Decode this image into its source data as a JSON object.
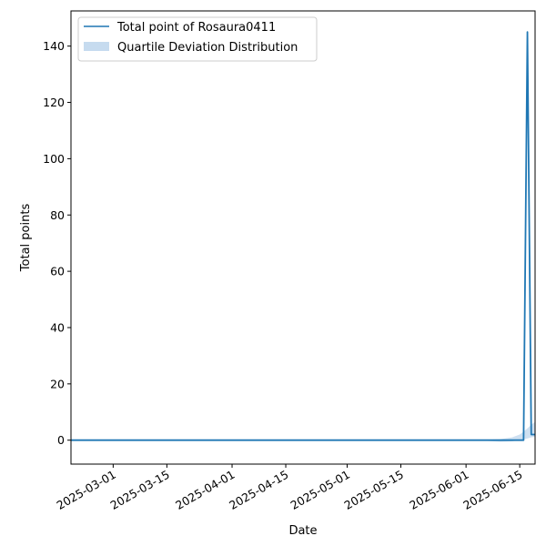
{
  "chart_data": {
    "type": "line",
    "xlabel": "Date",
    "ylabel": "Total points",
    "x_axis_type": "date",
    "xlim": [
      "2025-02-18",
      "2025-06-19"
    ],
    "ylim": [
      -8.5,
      152.5
    ],
    "x_ticks": [
      "2025-03-01",
      "2025-03-15",
      "2025-04-01",
      "2025-04-15",
      "2025-05-01",
      "2025-05-15",
      "2025-06-01",
      "2025-06-15"
    ],
    "y_ticks": [
      0,
      20,
      40,
      60,
      80,
      100,
      120,
      140
    ],
    "grid": false,
    "legend_position": "upper-left",
    "line_color": "#1f77b4",
    "band_color": "#c6dbef",
    "series": [
      {
        "name": "Total point of Rosaura0411",
        "x": [
          "2025-02-18",
          "2025-06-01",
          "2025-06-14",
          "2025-06-16",
          "2025-06-17",
          "2025-06-18",
          "2025-06-19"
        ],
        "values": [
          0,
          0,
          0,
          0,
          145,
          2,
          2
        ]
      }
    ],
    "band": {
      "name": "Quartile Deviation Distribution",
      "x": [
        "2025-02-18",
        "2025-06-01",
        "2025-06-06",
        "2025-06-10",
        "2025-06-13",
        "2025-06-15",
        "2025-06-16",
        "2025-06-17",
        "2025-06-18",
        "2025-06-19"
      ],
      "lower": [
        0,
        0,
        -0.2,
        -0.6,
        -0.4,
        0,
        0.3,
        0.6,
        1.0,
        1.2
      ],
      "upper": [
        0,
        0,
        0.2,
        0.4,
        1.0,
        2.0,
        3.0,
        4.2,
        5.5,
        6.5
      ]
    }
  }
}
